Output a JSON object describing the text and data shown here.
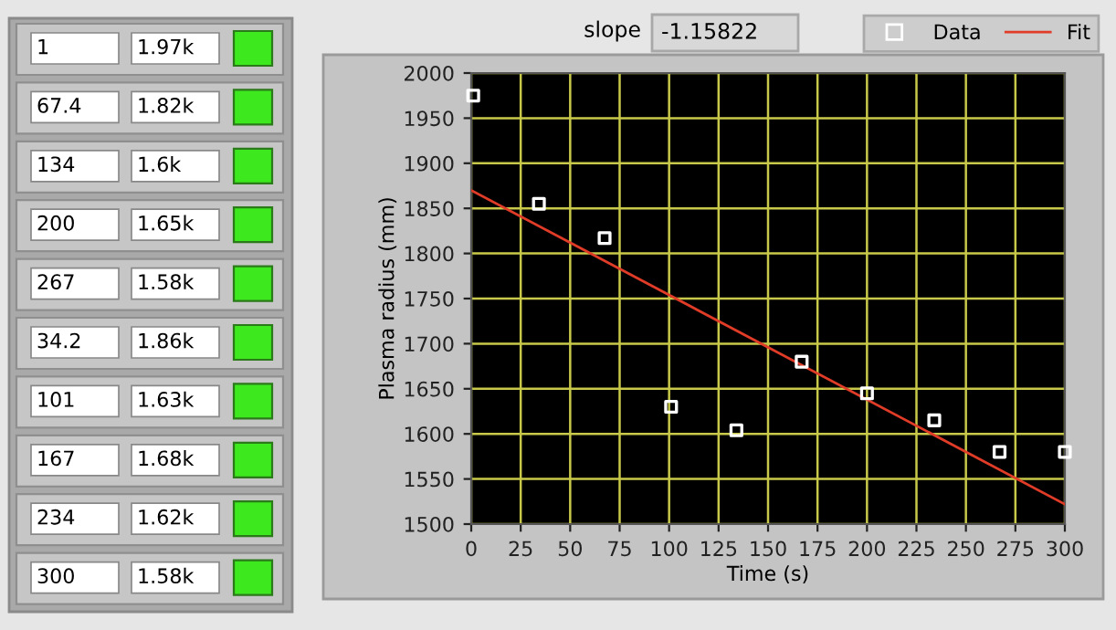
{
  "chart_data": {
    "type": "scatter",
    "xlabel": "Time (s)",
    "ylabel": "Plasma radius (mm)",
    "series": [
      {
        "name": "Data",
        "color": "#ffffff",
        "marker": "square",
        "x": [
          1,
          67.4,
          134,
          200,
          267,
          34.2,
          101,
          167,
          234,
          300
        ],
        "values": [
          1975,
          1817,
          1604,
          1645,
          1580,
          1855,
          1630,
          1680,
          1615,
          1580
        ]
      },
      {
        "name": "Fit",
        "type": "line",
        "color": "#e03c28",
        "marker": "none",
        "x": [
          0,
          300
        ],
        "values": [
          1870,
          1522
        ]
      }
    ],
    "xlim": [
      0,
      300
    ],
    "xticks": [
      0,
      25,
      50,
      75,
      100,
      125,
      150,
      175,
      200,
      225,
      250,
      275,
      300
    ],
    "ylim": [
      1500,
      2000
    ],
    "yticks": [
      1500,
      1550,
      1600,
      1650,
      1700,
      1750,
      1800,
      1850,
      1900,
      1950,
      2000
    ],
    "grid": true,
    "legend": "top right",
    "annotations": [
      "slope",
      "-1.15822",
      "1",
      "1.97k",
      "67.4",
      "1.82k",
      "134",
      "1.6k",
      "200",
      "1.65k",
      "267",
      "1.58k",
      "34.2",
      "1.86k",
      "101",
      "1.63k",
      "167",
      "1.68k",
      "234",
      "1.62k",
      "300",
      "1.58k"
    ]
  }
}
